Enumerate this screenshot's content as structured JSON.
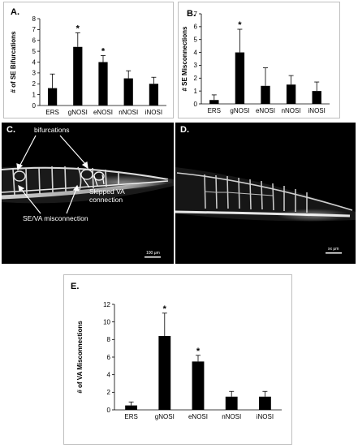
{
  "panels": {
    "A": {
      "label": "A.",
      "chart_data": {
        "type": "bar",
        "categories": [
          "ERS",
          "gNOSI",
          "eNOSI",
          "nNOSI",
          "iNOSI"
        ],
        "values": [
          1.6,
          5.4,
          4.0,
          2.5,
          2.0
        ],
        "errors": [
          1.3,
          1.3,
          0.6,
          0.7,
          0.6
        ],
        "significant": [
          false,
          true,
          true,
          false,
          false
        ],
        "ylabel": "# of SE Bifurcations",
        "xlabel": "",
        "ylim": [
          0,
          8
        ],
        "yticks": [
          0,
          1,
          2,
          3,
          4,
          5,
          6,
          7,
          8
        ],
        "significance_marker": "*"
      }
    },
    "B": {
      "label": "B.",
      "chart_data": {
        "type": "bar",
        "categories": [
          "ERS",
          "gNOSI",
          "eNOSI",
          "nNOSI",
          "iNOSI"
        ],
        "values": [
          0.3,
          4.0,
          1.4,
          1.5,
          1.0
        ],
        "errors": [
          0.4,
          1.8,
          1.4,
          0.7,
          0.7
        ],
        "significant": [
          false,
          true,
          false,
          false,
          false
        ],
        "ylabel": "# SE Misconnections",
        "xlabel": "",
        "ylim": [
          0,
          7
        ],
        "yticks": [
          0,
          1,
          2,
          3,
          4,
          5,
          6,
          7
        ],
        "significance_marker": "*"
      }
    },
    "C": {
      "label": "C.",
      "annotations": {
        "bifurcations": "bifurcations",
        "skipped": "Skipped VA connection",
        "se_va": "SE/VA misconnection"
      },
      "scale_bar": "100 μm"
    },
    "D": {
      "label": "D.",
      "scale_bar": "xx μm"
    },
    "E": {
      "label": "E.",
      "chart_data": {
        "type": "bar",
        "categories": [
          "ERS",
          "gNOSI",
          "eNOSI",
          "nNOSI",
          "iNOSI"
        ],
        "values": [
          0.5,
          8.4,
          5.5,
          1.5,
          1.5
        ],
        "errors": [
          0.4,
          2.6,
          0.7,
          0.6,
          0.6
        ],
        "significant": [
          false,
          true,
          true,
          false,
          false
        ],
        "ylabel": "# of VA Misconnections",
        "xlabel": "",
        "ylim": [
          0,
          12
        ],
        "yticks": [
          0,
          2,
          4,
          6,
          8,
          10,
          12
        ],
        "significance_marker": "*"
      }
    }
  }
}
